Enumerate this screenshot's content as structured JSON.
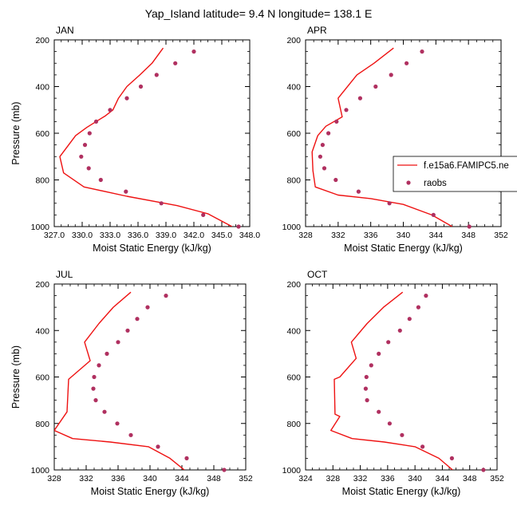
{
  "title": "Yap_Island  latitude= 9.4 N longitude= 138.1 E",
  "colors": {
    "model": "#ee1111",
    "raobs": "#b03060",
    "axis": "#000000"
  },
  "legend": {
    "model_label": "f.e15a6.FAMIPC5.ne",
    "raobs_label": "raobs"
  },
  "chart_data": [
    {
      "type": "line",
      "panel": "JAN",
      "title": "JAN",
      "xlabel": "Moist Static Energy (kJ/kg)",
      "ylabel": "Pressure (mb)",
      "xlim": [
        327,
        348
      ],
      "xticks": [
        327,
        330,
        333,
        336,
        339,
        342,
        345,
        348
      ],
      "xtick_labels": [
        "327.0",
        "330.0",
        "333.0",
        "336.0",
        "339.0",
        "342.0",
        "345.0",
        "348.0"
      ],
      "ylim": [
        1000,
        200
      ],
      "yticks": [
        200,
        400,
        600,
        800,
        1000
      ],
      "ytick_labels": [
        "200",
        "400",
        "600",
        "800",
        "1000"
      ],
      "series": [
        {
          "style": "line",
          "points": [
            [
              338.7,
              235
            ],
            [
              337.5,
              300
            ],
            [
              336.2,
              350
            ],
            [
              334.8,
              400
            ],
            [
              333.9,
              450
            ],
            [
              333.3,
              500
            ],
            [
              332.5,
              525
            ],
            [
              330.5,
              575
            ],
            [
              329.3,
              610
            ],
            [
              327.6,
              700
            ],
            [
              328.0,
              770
            ],
            [
              330.2,
              830
            ],
            [
              334.8,
              870
            ],
            [
              340.2,
              910
            ],
            [
              343.5,
              945
            ],
            [
              346.1,
              1000
            ]
          ]
        },
        {
          "style": "dots",
          "points": [
            [
              342.0,
              250
            ],
            [
              340.0,
              300
            ],
            [
              338.0,
              350
            ],
            [
              336.3,
              400
            ],
            [
              334.8,
              450
            ],
            [
              333.0,
              500
            ],
            [
              331.5,
              550
            ],
            [
              330.8,
              600
            ],
            [
              330.3,
              650
            ],
            [
              329.9,
              700
            ],
            [
              330.7,
              750
            ],
            [
              332.0,
              800
            ],
            [
              334.7,
              850
            ],
            [
              338.5,
              900
            ],
            [
              343.0,
              950
            ],
            [
              346.8,
              1000
            ]
          ]
        }
      ]
    },
    {
      "type": "line",
      "panel": "APR",
      "title": "APR",
      "xlabel": "Moist Static Energy (kJ/kg)",
      "ylabel": "",
      "xlim": [
        328,
        352
      ],
      "xticks": [
        328,
        332,
        336,
        340,
        344,
        348,
        352
      ],
      "xtick_labels": [
        "328",
        "332",
        "336",
        "340",
        "344",
        "348",
        "352"
      ],
      "ylim": [
        1000,
        200
      ],
      "yticks": [
        200,
        400,
        600,
        800,
        1000
      ],
      "ytick_labels": [
        "200",
        "400",
        "600",
        "800",
        "1000"
      ],
      "series": [
        {
          "style": "line",
          "points": [
            [
              338.8,
              235
            ],
            [
              336.4,
              300
            ],
            [
              334.3,
              350
            ],
            [
              332.0,
              450
            ],
            [
              332.5,
              530
            ],
            [
              330.5,
              570
            ],
            [
              329.5,
              610
            ],
            [
              328.8,
              680
            ],
            [
              328.9,
              760
            ],
            [
              329.2,
              830
            ],
            [
              332.0,
              865
            ],
            [
              336.0,
              880
            ],
            [
              340.0,
              905
            ],
            [
              343.5,
              950
            ],
            [
              346.0,
              1000
            ]
          ]
        },
        {
          "style": "dots",
          "points": [
            [
              342.3,
              250
            ],
            [
              340.4,
              300
            ],
            [
              338.5,
              350
            ],
            [
              336.6,
              400
            ],
            [
              334.7,
              450
            ],
            [
              333.0,
              500
            ],
            [
              331.8,
              550
            ],
            [
              330.8,
              600
            ],
            [
              330.1,
              650
            ],
            [
              329.8,
              700
            ],
            [
              330.3,
              750
            ],
            [
              331.7,
              800
            ],
            [
              334.5,
              850
            ],
            [
              338.3,
              900
            ],
            [
              343.7,
              950
            ],
            [
              348.1,
              1000
            ]
          ]
        }
      ]
    },
    {
      "type": "line",
      "panel": "JUL",
      "title": "JUL",
      "xlabel": "Moist Static Energy (kJ/kg)",
      "ylabel": "Pressure (mb)",
      "xlim": [
        328,
        352
      ],
      "xticks": [
        328,
        332,
        336,
        340,
        344,
        348,
        352
      ],
      "xtick_labels": [
        "328",
        "332",
        "336",
        "340",
        "344",
        "348",
        "352"
      ],
      "ylim": [
        1000,
        200
      ],
      "yticks": [
        200,
        400,
        600,
        800,
        1000
      ],
      "ytick_labels": [
        "200",
        "400",
        "600",
        "800",
        "1000"
      ],
      "series": [
        {
          "style": "line",
          "points": [
            [
              337.6,
              235
            ],
            [
              335.4,
              300
            ],
            [
              333.6,
              370
            ],
            [
              331.8,
              450
            ],
            [
              332.5,
              530
            ],
            [
              329.8,
              610
            ],
            [
              329.6,
              750
            ],
            [
              328.0,
              830
            ],
            [
              330.3,
              865
            ],
            [
              335.0,
              880
            ],
            [
              339.8,
              900
            ],
            [
              342.5,
              950
            ],
            [
              344.3,
              1000
            ]
          ]
        },
        {
          "style": "dots",
          "points": [
            [
              342.0,
              250
            ],
            [
              339.7,
              300
            ],
            [
              338.4,
              350
            ],
            [
              337.2,
              400
            ],
            [
              336.0,
              450
            ],
            [
              334.6,
              500
            ],
            [
              333.6,
              550
            ],
            [
              333.0,
              600
            ],
            [
              332.9,
              650
            ],
            [
              333.2,
              700
            ],
            [
              334.3,
              750
            ],
            [
              335.9,
              800
            ],
            [
              337.6,
              850
            ],
            [
              341.0,
              900
            ],
            [
              344.6,
              950
            ],
            [
              349.3,
              1000
            ]
          ]
        }
      ]
    },
    {
      "type": "line",
      "panel": "OCT",
      "title": "OCT",
      "xlabel": "Moist Static Energy (kJ/kg)",
      "ylabel": "",
      "xlim": [
        324,
        352
      ],
      "xticks": [
        324,
        328,
        332,
        336,
        340,
        344,
        348,
        352
      ],
      "xtick_labels": [
        "324",
        "328",
        "332",
        "336",
        "340",
        "344",
        "348",
        "352"
      ],
      "ylim": [
        1000,
        200
      ],
      "yticks": [
        200,
        400,
        600,
        800,
        1000
      ],
      "ytick_labels": [
        "200",
        "400",
        "600",
        "800",
        "1000"
      ],
      "series": [
        {
          "style": "line",
          "points": [
            [
              338.2,
              235
            ],
            [
              335.4,
              300
            ],
            [
              333.0,
              370
            ],
            [
              330.7,
              450
            ],
            [
              331.4,
              520
            ],
            [
              329.0,
              600
            ],
            [
              328.2,
              610
            ],
            [
              328.3,
              760
            ],
            [
              329.0,
              770
            ],
            [
              327.7,
              830
            ],
            [
              330.8,
              865
            ],
            [
              335.5,
              880
            ],
            [
              340.0,
              900
            ],
            [
              343.5,
              950
            ],
            [
              345.5,
              1000
            ]
          ]
        },
        {
          "style": "dots",
          "points": [
            [
              341.6,
              250
            ],
            [
              340.5,
              300
            ],
            [
              339.2,
              350
            ],
            [
              337.8,
              400
            ],
            [
              336.1,
              450
            ],
            [
              334.7,
              500
            ],
            [
              333.6,
              550
            ],
            [
              332.9,
              600
            ],
            [
              332.8,
              650
            ],
            [
              333.0,
              700
            ],
            [
              334.7,
              750
            ],
            [
              336.3,
              800
            ],
            [
              338.1,
              850
            ],
            [
              341.1,
              900
            ],
            [
              345.4,
              950
            ],
            [
              350.0,
              1000
            ]
          ]
        }
      ]
    }
  ]
}
